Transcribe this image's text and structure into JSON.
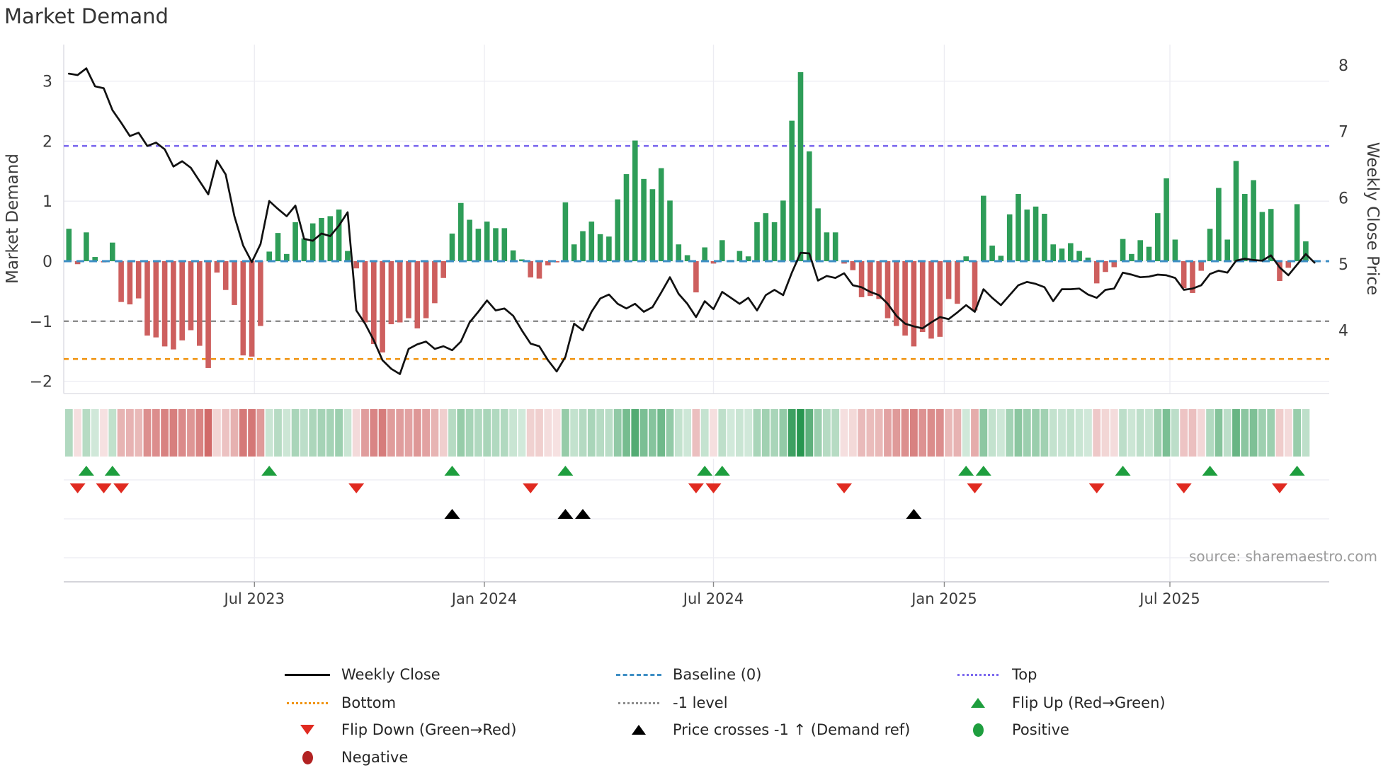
{
  "title": "Market Demand",
  "source": "source: sharemaestro.com",
  "axes": {
    "left_label": "Market Demand",
    "right_label": "Weekly Close Price",
    "left_ticks": [
      "3",
      "2",
      "1",
      "0",
      "−1",
      "−2"
    ],
    "left_tick_values": [
      3,
      2,
      1,
      0,
      -1,
      -2
    ],
    "right_ticks": [
      "8",
      "7",
      "6",
      "5",
      "4"
    ],
    "right_tick_values": [
      8,
      7,
      6,
      5,
      4
    ],
    "x_ticks": [
      {
        "label": "Jul 2023",
        "week": 21.3
      },
      {
        "label": "Jan 2024",
        "week": 47.7
      },
      {
        "label": "Jul 2024",
        "week": 74.0
      },
      {
        "label": "Jan 2025",
        "week": 100.5
      },
      {
        "label": "Jul 2025",
        "week": 126.4
      }
    ]
  },
  "colors": {
    "bar_positive": "#2e9d58",
    "bar_negative": "#cd5f5e",
    "price_line": "#111111",
    "baseline": "#3d8ec4",
    "top_line": "#7b68ee",
    "bottom_line": "#f0930f",
    "minus1_line": "#8c8c8c",
    "flip_up": "#1e9e3e",
    "flip_down": "#e02a20",
    "price_cross": "#000000",
    "positive_dot": "#1e9e3e",
    "negative_dot": "#b22222",
    "grid": "#ececf2",
    "axis_spine": "#c6c6ce",
    "tick_text": "#3c3c3c"
  },
  "legend": {
    "items": [
      {
        "label": "Weekly Close",
        "swatch": "line-black",
        "row": 0,
        "col": 0
      },
      {
        "label": "Baseline (0)",
        "swatch": "dash-blue",
        "row": 0,
        "col": 1
      },
      {
        "label": "Top",
        "swatch": "dot-purple",
        "row": 0,
        "col": 2
      },
      {
        "label": "Bottom",
        "swatch": "dot-orange",
        "row": 1,
        "col": 0
      },
      {
        "label": "-1 level",
        "swatch": "dot-gray",
        "row": 1,
        "col": 1
      },
      {
        "label": "Flip Up (Red→Green)",
        "swatch": "tri-up-green",
        "row": 1,
        "col": 2
      },
      {
        "label": "Flip Down (Green→Red)",
        "swatch": "tri-down-red",
        "row": 2,
        "col": 0
      },
      {
        "label": "Price crosses -1 ↑ (Demand ref)",
        "swatch": "tri-up-black",
        "row": 2,
        "col": 1
      },
      {
        "label": "Positive",
        "swatch": "dot-green",
        "row": 2,
        "col": 2
      },
      {
        "label": "Negative",
        "swatch": "dot-darkred",
        "row": 3,
        "col": 0
      }
    ]
  },
  "chart_data": {
    "type": "combo",
    "title": "Market Demand",
    "x": {
      "start_date": "2023-02-03",
      "interval": "weekly",
      "num_points": 143
    },
    "left_axis": {
      "label": "Market Demand",
      "ticks": [
        3,
        2,
        1,
        0,
        -1,
        -2
      ],
      "ylim": [
        -2.38,
        3.62
      ]
    },
    "right_axis": {
      "label": "Weekly Close Price",
      "ticks": [
        8,
        7,
        6,
        5,
        4
      ],
      "ylim": [
        3.0,
        8.3
      ]
    },
    "reference_lines": {
      "baseline": 0,
      "top": 1.92,
      "bottom": -1.63,
      "minus1": -1
    },
    "series": [
      {
        "name": "Market Demand",
        "type": "bar",
        "axis": "left",
        "values": [
          0.54,
          -0.05,
          0.48,
          0.07,
          -0.02,
          0.31,
          -0.68,
          -0.72,
          -0.62,
          -1.24,
          -1.27,
          -1.42,
          -1.47,
          -1.32,
          -1.15,
          -1.41,
          -1.78,
          -0.19,
          -0.48,
          -0.73,
          -1.57,
          -1.59,
          -1.08,
          0.16,
          0.47,
          0.12,
          0.65,
          0.38,
          0.63,
          0.72,
          0.75,
          0.86,
          0.17,
          -0.12,
          -1.02,
          -1.38,
          -1.52,
          -1.05,
          -1.02,
          -0.95,
          -1.12,
          -0.95,
          -0.7,
          -0.28,
          0.46,
          0.97,
          0.69,
          0.54,
          0.66,
          0.55,
          0.55,
          0.18,
          0.03,
          -0.27,
          -0.29,
          -0.07,
          -0.02,
          0.98,
          0.28,
          0.5,
          0.66,
          0.45,
          0.41,
          1.03,
          1.45,
          2.01,
          1.37,
          1.2,
          1.55,
          1.01,
          0.28,
          0.1,
          -0.52,
          0.23,
          -0.04,
          0.35,
          0.02,
          0.17,
          0.08,
          0.65,
          0.8,
          0.65,
          1.01,
          2.34,
          3.15,
          1.83,
          0.88,
          0.48,
          0.48,
          -0.04,
          -0.15,
          -0.6,
          -0.58,
          -0.63,
          -0.95,
          -1.08,
          -1.24,
          -1.42,
          -1.18,
          -1.29,
          -1.26,
          -0.63,
          -0.71,
          0.08,
          -0.82,
          1.09,
          0.26,
          0.09,
          0.78,
          1.12,
          0.86,
          0.91,
          0.79,
          0.28,
          0.21,
          0.3,
          0.17,
          0.06,
          -0.37,
          -0.18,
          -0.1,
          0.37,
          0.12,
          0.35,
          0.24,
          0.8,
          1.38,
          0.36,
          -0.45,
          -0.53,
          -0.16,
          0.54,
          1.22,
          0.36,
          1.67,
          1.12,
          1.35,
          0.82,
          0.87,
          -0.33,
          -0.11,
          0.95,
          0.33
        ]
      },
      {
        "name": "Weekly Close",
        "type": "line",
        "axis": "right",
        "values": [
          7.87,
          7.85,
          7.95,
          7.68,
          7.65,
          7.32,
          7.13,
          6.93,
          6.98,
          6.78,
          6.83,
          6.73,
          6.47,
          6.55,
          6.45,
          6.25,
          6.05,
          6.56,
          6.35,
          5.72,
          5.28,
          5.03,
          5.3,
          5.95,
          5.83,
          5.72,
          5.88,
          5.38,
          5.35,
          5.46,
          5.42,
          5.58,
          5.78,
          4.3,
          4.1,
          3.85,
          3.55,
          3.42,
          3.34,
          3.72,
          3.79,
          3.83,
          3.72,
          3.76,
          3.7,
          3.83,
          4.12,
          4.28,
          4.45,
          4.3,
          4.33,
          4.22,
          4.0,
          3.8,
          3.76,
          3.55,
          3.38,
          3.6,
          4.1,
          4.0,
          4.28,
          4.48,
          4.54,
          4.4,
          4.33,
          4.4,
          4.28,
          4.35,
          4.57,
          4.8,
          4.55,
          4.4,
          4.2,
          4.44,
          4.32,
          4.58,
          4.49,
          4.4,
          4.49,
          4.3,
          4.53,
          4.61,
          4.53,
          4.87,
          5.17,
          5.16,
          4.75,
          4.82,
          4.79,
          4.86,
          4.68,
          4.65,
          4.58,
          4.53,
          4.4,
          4.22,
          4.1,
          4.06,
          4.03,
          4.12,
          4.2,
          4.17,
          4.27,
          4.38,
          4.28,
          4.62,
          4.49,
          4.38,
          4.53,
          4.68,
          4.73,
          4.7,
          4.65,
          4.44,
          4.62,
          4.62,
          4.63,
          4.54,
          4.49,
          4.61,
          4.63,
          4.87,
          4.84,
          4.8,
          4.81,
          4.84,
          4.83,
          4.79,
          4.61,
          4.63,
          4.68,
          4.85,
          4.9,
          4.87,
          5.05,
          5.08,
          5.06,
          5.05,
          5.13,
          4.95,
          4.83,
          4.99,
          5.15,
          5.02
        ]
      }
    ],
    "markers": {
      "flip_up_weeks": [
        2,
        5,
        23,
        44,
        57,
        73,
        75,
        103,
        105,
        121,
        131,
        141
      ],
      "flip_down_weeks": [
        1,
        4,
        6,
        33,
        53,
        72,
        74,
        89,
        104,
        118,
        128,
        139
      ],
      "price_cross_weeks": [
        44,
        57,
        59,
        97
      ]
    },
    "heatmap_strip": {
      "note": "one cell per week; green shade scales with positive demand, red shade with negative demand"
    },
    "layout_hints": {
      "grid": true,
      "legend_position": "bottom",
      "legend_columns": 3
    }
  }
}
